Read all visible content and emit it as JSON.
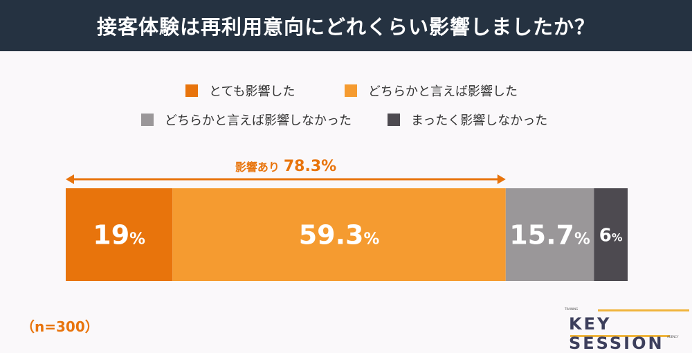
{
  "chart_data": {
    "type": "bar",
    "orientation": "horizontal-stacked-100",
    "title": "接客体験は再利用意向にどれくらい影響しましたか？",
    "categories": [
      "とても影響した",
      "どちらかと言えば影響した",
      "どちらかと言えば影響しなかった",
      "まったく影響しなかった"
    ],
    "values": [
      19,
      59.3,
      15.7,
      6
    ],
    "labels": [
      "19",
      "59.3",
      "15.7",
      "6"
    ],
    "unit": "%",
    "colors": [
      "#e8740c",
      "#f59b30",
      "#9a9799",
      "#4d4a50"
    ],
    "legend_position": "top",
    "annotation": {
      "label": "影響あり",
      "value": "78.3%",
      "spans": [
        0,
        1
      ]
    },
    "note": "（n=300）"
  },
  "logo": {
    "main": "KEY SESSION",
    "top": "TRAINING",
    "bottom": "AGENCY"
  }
}
